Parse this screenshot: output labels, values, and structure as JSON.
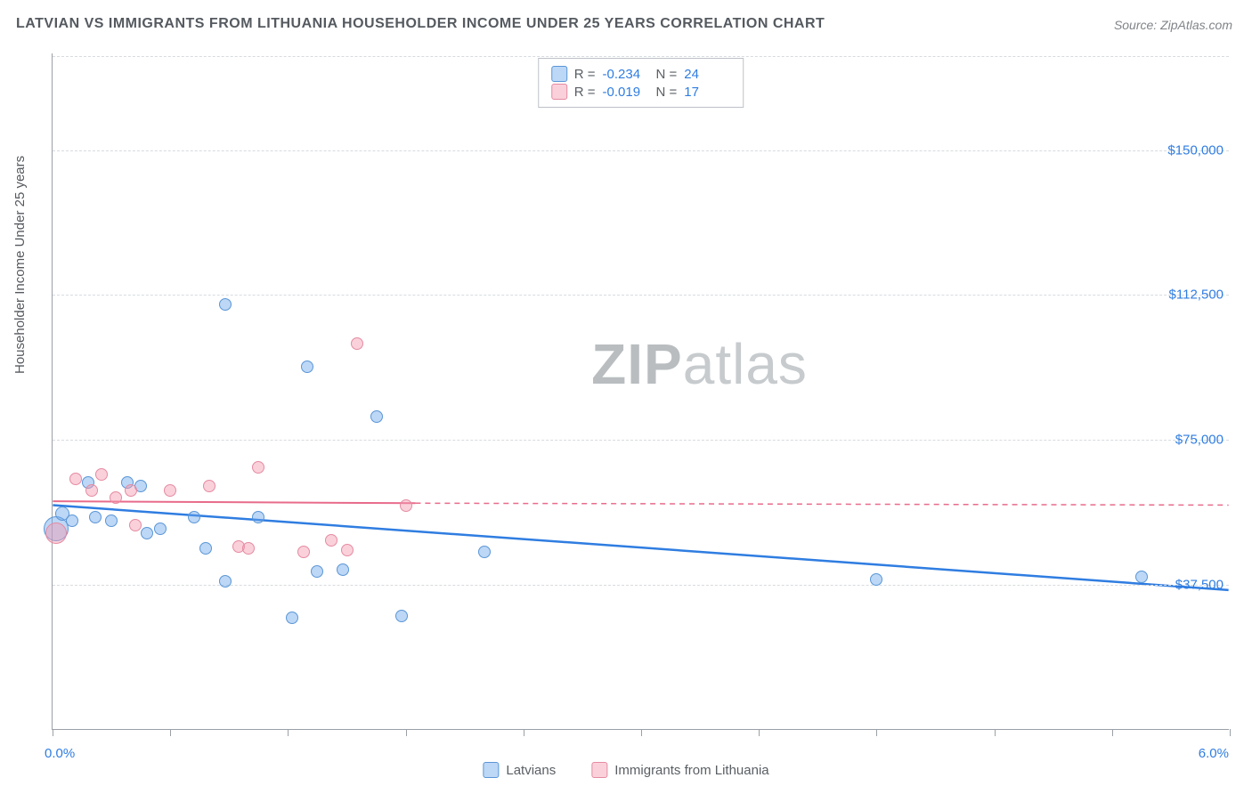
{
  "title": "LATVIAN VS IMMIGRANTS FROM LITHUANIA HOUSEHOLDER INCOME UNDER 25 YEARS CORRELATION CHART",
  "source": "Source: ZipAtlas.com",
  "y_axis_label": "Householder Income Under 25 years",
  "watermark": {
    "bold": "ZIP",
    "rest": "atlas"
  },
  "chart": {
    "type": "scatter",
    "background_color": "#ffffff",
    "grid_color": "#d7dbdf",
    "axis_color": "#9aa0a6",
    "tick_label_color": "#2f7de1",
    "xlim": [
      0.0,
      6.0
    ],
    "ylim": [
      0,
      175000
    ],
    "x_tick_positions": [
      0.0,
      0.6,
      1.2,
      1.8,
      2.4,
      3.0,
      3.6,
      4.2,
      4.8,
      5.4,
      6.0
    ],
    "x_range_labels": {
      "min": "0.0%",
      "max": "6.0%"
    },
    "y_ticks": [
      {
        "v": 37500,
        "label": "$37,500"
      },
      {
        "v": 75000,
        "label": "$75,000"
      },
      {
        "v": 112500,
        "label": "$112,500"
      },
      {
        "v": 150000,
        "label": "$150,000"
      }
    ],
    "series": [
      {
        "key": "latvians",
        "label": "Latvians",
        "color_fill": "rgba(109,167,234,0.45)",
        "color_stroke": "#5a96d6",
        "trend_color": "#2f7de1",
        "trend_dash_beyond": false,
        "stats": {
          "R": "-0.234",
          "N": "24"
        },
        "trend": {
          "x1": 0.0,
          "y1": 58000,
          "x2": 6.0,
          "y2": 36000
        },
        "points": [
          {
            "x": 0.02,
            "y": 52000,
            "r": 14
          },
          {
            "x": 0.05,
            "y": 56000,
            "r": 8
          },
          {
            "x": 0.1,
            "y": 54000,
            "r": 7
          },
          {
            "x": 0.18,
            "y": 64000,
            "r": 7
          },
          {
            "x": 0.22,
            "y": 55000,
            "r": 7
          },
          {
            "x": 0.3,
            "y": 54000,
            "r": 7
          },
          {
            "x": 0.38,
            "y": 64000,
            "r": 7
          },
          {
            "x": 0.45,
            "y": 63000,
            "r": 7
          },
          {
            "x": 0.48,
            "y": 51000,
            "r": 7
          },
          {
            "x": 0.55,
            "y": 52000,
            "r": 7
          },
          {
            "x": 0.72,
            "y": 55000,
            "r": 7
          },
          {
            "x": 0.78,
            "y": 47000,
            "r": 7
          },
          {
            "x": 0.88,
            "y": 110000,
            "r": 7
          },
          {
            "x": 0.88,
            "y": 38500,
            "r": 7
          },
          {
            "x": 1.05,
            "y": 55000,
            "r": 7
          },
          {
            "x": 1.22,
            "y": 29000,
            "r": 7
          },
          {
            "x": 1.3,
            "y": 94000,
            "r": 7
          },
          {
            "x": 1.35,
            "y": 41000,
            "r": 7
          },
          {
            "x": 1.48,
            "y": 41500,
            "r": 7
          },
          {
            "x": 1.65,
            "y": 81000,
            "r": 7
          },
          {
            "x": 1.78,
            "y": 29500,
            "r": 7
          },
          {
            "x": 2.2,
            "y": 46000,
            "r": 7
          },
          {
            "x": 4.2,
            "y": 39000,
            "r": 7
          },
          {
            "x": 5.55,
            "y": 39500,
            "r": 7
          }
        ]
      },
      {
        "key": "lithuania",
        "label": "Immigrants from Lithuania",
        "color_fill": "rgba(244,153,175,0.45)",
        "color_stroke": "#e58aa1",
        "trend_color": "#e86b8b",
        "trend_dash_beyond": true,
        "stats": {
          "R": "-0.019",
          "N": "17"
        },
        "trend": {
          "x1": 0.0,
          "y1": 59000,
          "x2": 1.85,
          "y2": 58500,
          "x2_dash": 6.0,
          "y2_dash": 58000
        },
        "points": [
          {
            "x": 0.02,
            "y": 51000,
            "r": 12
          },
          {
            "x": 0.12,
            "y": 65000,
            "r": 7
          },
          {
            "x": 0.2,
            "y": 62000,
            "r": 7
          },
          {
            "x": 0.25,
            "y": 66000,
            "r": 7
          },
          {
            "x": 0.32,
            "y": 60000,
            "r": 7
          },
          {
            "x": 0.4,
            "y": 62000,
            "r": 7
          },
          {
            "x": 0.42,
            "y": 53000,
            "r": 7
          },
          {
            "x": 0.6,
            "y": 62000,
            "r": 7
          },
          {
            "x": 0.8,
            "y": 63000,
            "r": 7
          },
          {
            "x": 0.95,
            "y": 47500,
            "r": 7
          },
          {
            "x": 1.0,
            "y": 47000,
            "r": 7
          },
          {
            "x": 1.05,
            "y": 68000,
            "r": 7
          },
          {
            "x": 1.28,
            "y": 46000,
            "r": 7
          },
          {
            "x": 1.42,
            "y": 49000,
            "r": 7
          },
          {
            "x": 1.5,
            "y": 46500,
            "r": 7
          },
          {
            "x": 1.55,
            "y": 100000,
            "r": 7
          },
          {
            "x": 1.8,
            "y": 58000,
            "r": 7
          }
        ]
      }
    ]
  },
  "stats_box_labels": {
    "R": "R =",
    "N": "N ="
  },
  "legend_labels": {
    "s1": "Latvians",
    "s2": "Immigrants from Lithuania"
  }
}
